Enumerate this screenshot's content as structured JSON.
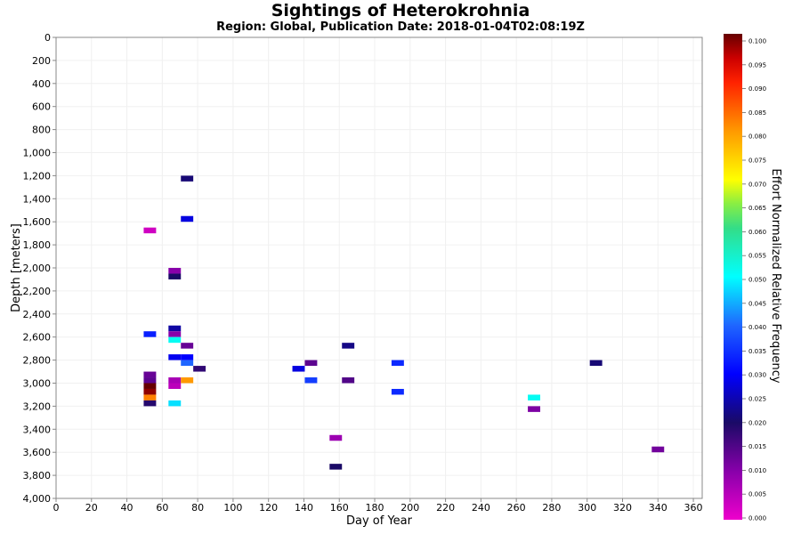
{
  "chart_data": {
    "type": "heatmap",
    "title": "Sightings of Heterokrohnia",
    "subtitle": "Region: Global, Publication Date: 2018-01-04T02:08:19Z",
    "xlabel": "Day of Year",
    "ylabel": "Depth [meters]",
    "xlim": [
      0,
      365
    ],
    "ylim": [
      4000,
      0
    ],
    "x_ticks": [
      0,
      20,
      40,
      60,
      80,
      100,
      120,
      140,
      160,
      180,
      200,
      220,
      240,
      260,
      280,
      300,
      320,
      340,
      360
    ],
    "y_ticks": [
      {
        "value": 0,
        "label": "0"
      },
      {
        "value": 200,
        "label": "200"
      },
      {
        "value": 400,
        "label": "400"
      },
      {
        "value": 600,
        "label": "600"
      },
      {
        "value": 800,
        "label": "800"
      },
      {
        "value": 1000,
        "label": "1,000"
      },
      {
        "value": 1200,
        "label": "1,200"
      },
      {
        "value": 1400,
        "label": "1,400"
      },
      {
        "value": 1600,
        "label": "1,600"
      },
      {
        "value": 1800,
        "label": "1,800"
      },
      {
        "value": 2000,
        "label": "2,000"
      },
      {
        "value": 2200,
        "label": "2,200"
      },
      {
        "value": 2400,
        "label": "2,400"
      },
      {
        "value": 2600,
        "label": "2,600"
      },
      {
        "value": 2800,
        "label": "2,800"
      },
      {
        "value": 3000,
        "label": "3,000"
      },
      {
        "value": 3200,
        "label": "3,200"
      },
      {
        "value": 3400,
        "label": "3,400"
      },
      {
        "value": 3600,
        "label": "3,600"
      },
      {
        "value": 3800,
        "label": "3,800"
      },
      {
        "value": 4000,
        "label": "4,000"
      }
    ],
    "cell_size": {
      "days": 7,
      "depth_m": 50
    },
    "colorbar": {
      "label": "Effort Normalized Relative Frequency",
      "min": 0.0,
      "max": 0.1,
      "ticks": [
        "0.000",
        "0.005",
        "0.010",
        "0.015",
        "0.020",
        "0.025",
        "0.030",
        "0.035",
        "0.040",
        "0.045",
        "0.050",
        "0.055",
        "0.060",
        "0.065",
        "0.070",
        "0.075",
        "0.080",
        "0.085",
        "0.090",
        "0.095",
        "0.100"
      ],
      "stops": [
        {
          "v": 0.0,
          "color": "#ee00cc"
        },
        {
          "v": 0.01,
          "color": "#8800aa"
        },
        {
          "v": 0.02,
          "color": "#1a0a66"
        },
        {
          "v": 0.03,
          "color": "#0000ff"
        },
        {
          "v": 0.04,
          "color": "#1f66ff"
        },
        {
          "v": 0.05,
          "color": "#00ffff"
        },
        {
          "v": 0.06,
          "color": "#33dd88"
        },
        {
          "v": 0.065,
          "color": "#88ee44"
        },
        {
          "v": 0.07,
          "color": "#ffff00"
        },
        {
          "v": 0.08,
          "color": "#ff9900"
        },
        {
          "v": 0.09,
          "color": "#ff2200"
        },
        {
          "v": 0.095,
          "color": "#cc0000"
        },
        {
          "v": 0.1,
          "color": "#660000"
        }
      ]
    },
    "cells": [
      {
        "day": 74,
        "depth": 1225,
        "value": 0.021
      },
      {
        "day": 74,
        "depth": 1575,
        "value": 0.028
      },
      {
        "day": 53,
        "depth": 1675,
        "value": 0.003
      },
      {
        "day": 67,
        "depth": 2025,
        "value": 0.01
      },
      {
        "day": 67,
        "depth": 2075,
        "value": 0.02
      },
      {
        "day": 67,
        "depth": 2525,
        "value": 0.024
      },
      {
        "day": 53,
        "depth": 2575,
        "value": 0.033
      },
      {
        "day": 67,
        "depth": 2575,
        "value": 0.01
      },
      {
        "day": 67,
        "depth": 2625,
        "value": 0.051
      },
      {
        "day": 74,
        "depth": 2675,
        "value": 0.013
      },
      {
        "day": 165,
        "depth": 2675,
        "value": 0.022
      },
      {
        "day": 67,
        "depth": 2775,
        "value": 0.029
      },
      {
        "day": 74,
        "depth": 2775,
        "value": 0.03
      },
      {
        "day": 74,
        "depth": 2825,
        "value": 0.04
      },
      {
        "day": 144,
        "depth": 2825,
        "value": 0.014
      },
      {
        "day": 193,
        "depth": 2825,
        "value": 0.034
      },
      {
        "day": 305,
        "depth": 2825,
        "value": 0.021
      },
      {
        "day": 81,
        "depth": 2875,
        "value": 0.018
      },
      {
        "day": 137,
        "depth": 2875,
        "value": 0.028
      },
      {
        "day": 53,
        "depth": 2925,
        "value": 0.013
      },
      {
        "day": 53,
        "depth": 2975,
        "value": 0.014
      },
      {
        "day": 67,
        "depth": 2975,
        "value": 0.007
      },
      {
        "day": 74,
        "depth": 2975,
        "value": 0.08
      },
      {
        "day": 144,
        "depth": 2975,
        "value": 0.036
      },
      {
        "day": 165,
        "depth": 2975,
        "value": 0.015
      },
      {
        "day": 53,
        "depth": 3025,
        "value": 0.1
      },
      {
        "day": 67,
        "depth": 3025,
        "value": 0.005
      },
      {
        "day": 53,
        "depth": 3075,
        "value": 0.098
      },
      {
        "day": 193,
        "depth": 3075,
        "value": 0.034
      },
      {
        "day": 53,
        "depth": 3125,
        "value": 0.082
      },
      {
        "day": 270,
        "depth": 3125,
        "value": 0.051
      },
      {
        "day": 53,
        "depth": 3175,
        "value": 0.019
      },
      {
        "day": 67,
        "depth": 3175,
        "value": 0.048
      },
      {
        "day": 270,
        "depth": 3225,
        "value": 0.011
      },
      {
        "day": 158,
        "depth": 3475,
        "value": 0.008
      },
      {
        "day": 340,
        "depth": 3575,
        "value": 0.012
      },
      {
        "day": 158,
        "depth": 3725,
        "value": 0.02
      }
    ]
  }
}
